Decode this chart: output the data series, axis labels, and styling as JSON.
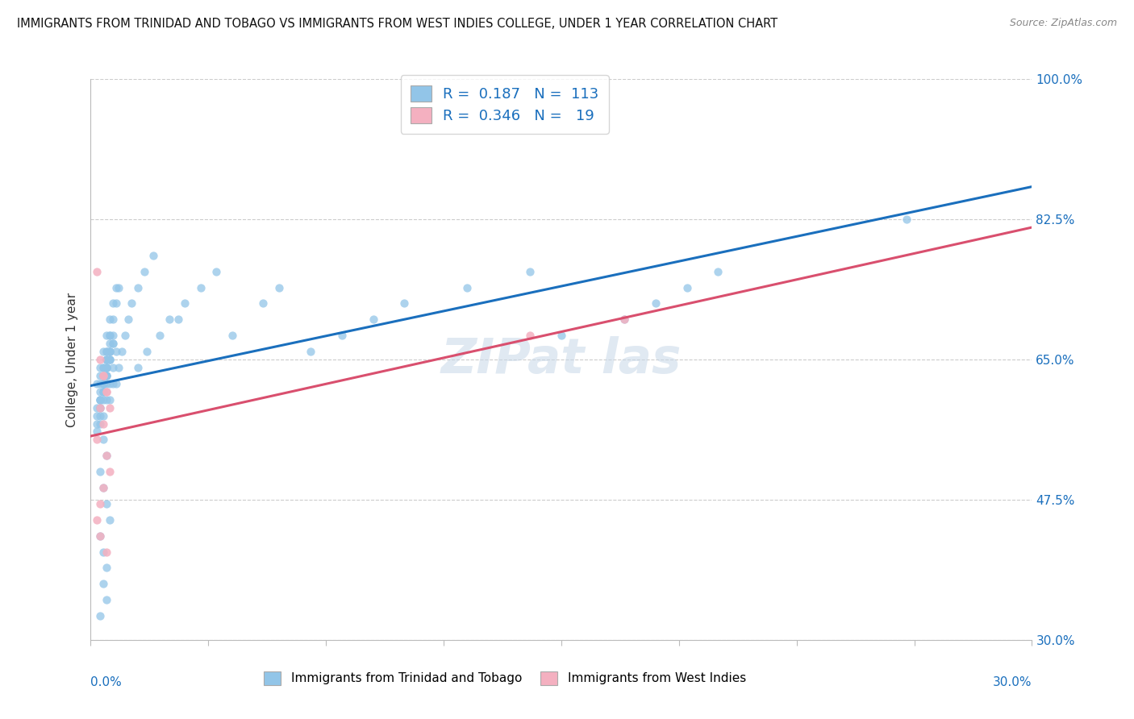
{
  "title": "IMMIGRANTS FROM TRINIDAD AND TOBAGO VS IMMIGRANTS FROM WEST INDIES COLLEGE, UNDER 1 YEAR CORRELATION CHART",
  "source": "Source: ZipAtlas.com",
  "ylabel_label": "College, Under 1 year",
  "xmin": 0.0,
  "xmax": 30.0,
  "ymin": 30.0,
  "ymax": 100.0,
  "yticks": [
    30.0,
    47.5,
    65.0,
    82.5,
    100.0
  ],
  "blue_R": 0.187,
  "blue_N": 113,
  "pink_R": 0.346,
  "pink_N": 19,
  "blue_color": "#92c5e8",
  "pink_color": "#f4b0c0",
  "blue_line_color": "#1a6fbd",
  "pink_line_color": "#d94f6e",
  "legend_label_blue": "Immigrants from Trinidad and Tobago",
  "legend_label_pink": "Immigrants from West Indies",
  "blue_x": [
    0.3,
    0.4,
    0.5,
    0.2,
    0.6,
    0.3,
    0.4,
    0.5,
    0.6,
    0.7,
    0.8,
    0.4,
    0.5,
    0.3,
    0.2,
    0.4,
    0.5,
    0.6,
    0.5,
    0.4,
    0.3,
    0.6,
    0.7,
    0.4,
    0.5,
    0.6,
    0.3,
    0.4,
    0.5,
    0.6,
    0.4,
    0.5,
    0.3,
    0.2,
    0.4,
    0.5,
    0.3,
    0.4,
    0.5,
    0.6,
    0.7,
    0.8,
    0.9,
    0.5,
    0.6,
    0.4,
    0.7,
    0.8,
    0.5,
    0.6,
    0.7,
    0.4,
    0.3,
    0.2,
    0.5,
    0.6,
    0.3,
    0.4,
    0.5,
    0.2,
    0.6,
    0.4,
    0.5,
    0.7,
    0.3,
    0.4,
    1.0,
    1.1,
    0.9,
    0.8,
    1.2,
    1.3,
    1.5,
    1.7,
    2.0,
    1.5,
    1.8,
    2.2,
    2.5,
    3.0,
    2.8,
    3.5,
    4.0,
    4.5,
    5.5,
    6.0,
    7.0,
    8.0,
    9.0,
    10.0,
    12.0,
    14.0,
    15.0,
    17.0,
    18.0,
    19.0,
    20.0,
    0.3,
    0.4,
    0.5,
    0.3,
    0.4,
    0.5,
    0.6,
    0.3,
    0.4,
    0.5,
    0.4,
    0.5,
    0.3,
    26.0,
    0.6,
    0.7
  ],
  "blue_y": [
    63.0,
    61.0,
    65.0,
    62.0,
    67.0,
    64.0,
    66.0,
    68.0,
    70.0,
    72.0,
    74.0,
    60.0,
    62.0,
    58.0,
    56.0,
    64.0,
    66.0,
    68.0,
    63.0,
    61.0,
    59.0,
    65.0,
    67.0,
    62.0,
    64.0,
    66.0,
    60.0,
    62.0,
    64.0,
    66.0,
    63.0,
    65.0,
    61.0,
    59.0,
    63.0,
    65.0,
    62.0,
    64.0,
    66.0,
    68.0,
    70.0,
    72.0,
    74.0,
    60.0,
    62.0,
    58.0,
    64.0,
    66.0,
    63.0,
    65.0,
    67.0,
    61.0,
    59.0,
    57.0,
    63.0,
    65.0,
    60.0,
    62.0,
    64.0,
    58.0,
    66.0,
    62.0,
    64.0,
    68.0,
    60.0,
    62.0,
    66.0,
    68.0,
    64.0,
    62.0,
    70.0,
    72.0,
    74.0,
    76.0,
    78.0,
    64.0,
    66.0,
    68.0,
    70.0,
    72.0,
    70.0,
    74.0,
    76.0,
    68.0,
    72.0,
    74.0,
    66.0,
    68.0,
    70.0,
    72.0,
    74.0,
    76.0,
    68.0,
    70.0,
    72.0,
    74.0,
    76.0,
    57.0,
    55.0,
    53.0,
    51.0,
    49.0,
    47.0,
    45.0,
    43.0,
    41.0,
    39.0,
    37.0,
    35.0,
    33.0,
    82.5,
    60.0,
    62.0
  ],
  "pink_x": [
    0.2,
    0.3,
    0.4,
    0.5,
    0.3,
    0.4,
    0.2,
    0.5,
    0.6,
    0.4,
    0.3,
    0.2,
    0.4,
    0.5,
    0.6,
    14.0,
    17.0,
    0.3,
    0.5
  ],
  "pink_y": [
    76.0,
    65.0,
    63.0,
    61.0,
    59.0,
    57.0,
    55.0,
    53.0,
    51.0,
    49.0,
    47.0,
    45.0,
    63.0,
    61.0,
    59.0,
    68.0,
    70.0,
    43.0,
    41.0
  ],
  "watermark": "ZIPat las"
}
